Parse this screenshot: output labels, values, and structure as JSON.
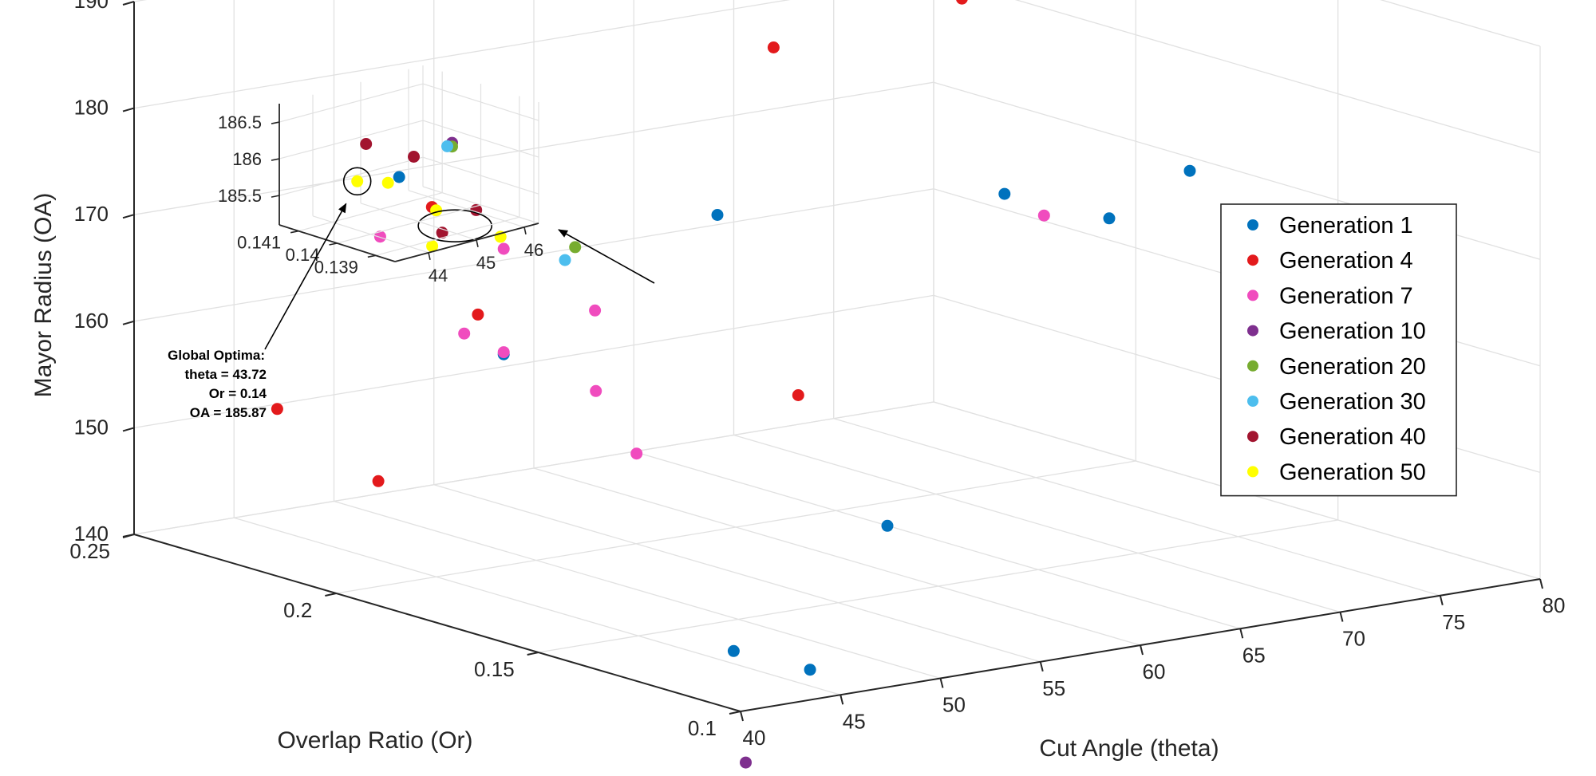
{
  "chart_data": {
    "type": "scatter3d",
    "xlabel": "Cut Angle (theta)",
    "ylabel": "Overlap Ratio (Or)",
    "zlabel": "Mayor Radius (OA)",
    "xlim": [
      40,
      80
    ],
    "ylim": [
      0.1,
      0.25
    ],
    "zlim": [
      140,
      190
    ],
    "xticks": [
      "40",
      "45",
      "50",
      "55",
      "60",
      "65",
      "70",
      "75",
      "80"
    ],
    "yticks": [
      "0.1",
      "0.15",
      "0.2",
      "0.25"
    ],
    "zticks": [
      "140",
      "150",
      "160",
      "170",
      "180",
      "190"
    ],
    "grid": true,
    "legend_position": "right",
    "series": [
      {
        "name": "Generation 1",
        "color": "#0072BD",
        "points": [
          [
            47.8,
            0.223,
            174.1
          ],
          [
            43.7,
            0.12,
            142.3
          ],
          [
            45.5,
            0.11,
            141.1
          ],
          [
            52.4,
            0.125,
            150.8
          ],
          [
            53.0,
            0.17,
            174.8
          ],
          [
            63.5,
            0.125,
            176.2
          ],
          [
            73.6,
            0.155,
            174.2
          ],
          [
            79.5,
            0.23,
            161.9
          ],
          [
            75.5,
            0.145,
            158.1
          ],
          [
            50.4,
            0.21,
            158.1
          ]
        ]
      },
      {
        "name": "Generation 4",
        "color": "#E31A1C",
        "points": [
          [
            41.5,
            0.222,
            154.4
          ],
          [
            41.5,
            0.197,
            150.4
          ],
          [
            48.1,
            0.205,
            163.1
          ],
          [
            53.0,
            0.15,
            160.1
          ],
          [
            63.9,
            0.21,
            182.7
          ],
          [
            55.7,
            0.23,
            211.3
          ],
          [
            45.8,
            0.205,
            173.9
          ],
          [
            71.3,
            0.2,
            186.1
          ],
          [
            76.5,
            0.23,
            188.1
          ]
        ]
      },
      {
        "name": "Generation 7",
        "color": "#F04CBE",
        "points": [
          [
            42.2,
            0.2,
            172.8
          ],
          [
            44.9,
            0.16,
            161.9
          ],
          [
            43.9,
            0.145,
            158.0
          ],
          [
            46.4,
            0.2,
            162.4
          ],
          [
            48.9,
            0.18,
            166.0
          ],
          [
            50.4,
            0.21,
            168.0
          ],
          [
            50.4,
            0.21,
            158.3
          ],
          [
            65.7,
            0.152,
            172.8
          ]
        ]
      },
      {
        "name": "Generation 10",
        "color": "#7E2F8E",
        "points": [
          [
            43.9,
            0.118,
            132.0
          ]
        ]
      },
      {
        "name": "Generation 20",
        "color": "#77AC30",
        "points": [
          [
            47.5,
            0.178,
            172.6
          ]
        ]
      },
      {
        "name": "Generation 30",
        "color": "#4DBEEE",
        "points": [
          [
            47.4,
            0.18,
            171.2
          ]
        ]
      },
      {
        "name": "Generation 40",
        "color": "#A2142F",
        "points": [
          [
            47.0,
            0.2,
            173.8
          ],
          [
            45.3,
            0.2,
            172.2
          ]
        ]
      },
      {
        "name": "Generation 50",
        "color": "#FFFF00",
        "points": [
          [
            45.0,
            0.2,
            174.4
          ],
          [
            44.8,
            0.2,
            171.1
          ],
          [
            46.6,
            0.192,
            172.3
          ]
        ]
      }
    ],
    "inset": {
      "xticks": [
        "44",
        "45",
        "46"
      ],
      "yticks": [
        "0.139",
        "0.14",
        "0.141"
      ],
      "zticks": [
        "185.5",
        "186",
        "186.5"
      ],
      "points": [
        {
          "series": "Generation 40",
          "color": "#A2142F",
          "theta": 43.5,
          "or": 0.1395,
          "oa": 186.5
        },
        {
          "series": "Generation 50",
          "color": "#FFFF00",
          "theta": 43.72,
          "or": 0.14,
          "oa": 185.87,
          "circled": true
        },
        {
          "series": "Generation 50",
          "color": "#FFFF00",
          "theta": 44.2,
          "or": 0.1398,
          "oa": 185.8
        },
        {
          "series": "Generation 40",
          "color": "#A2142F",
          "theta": 44.9,
          "or": 0.14,
          "oa": 186.0
        },
        {
          "series": "Generation 10",
          "color": "#7E2F8E",
          "theta": 45.7,
          "or": 0.14,
          "oa": 186.05
        },
        {
          "series": "Generation 20",
          "color": "#77AC30",
          "theta": 45.7,
          "or": 0.14,
          "oa": 186.0
        },
        {
          "series": "Generation 30",
          "color": "#4DBEEE",
          "theta": 45.6,
          "or": 0.14,
          "oa": 186.02
        }
      ]
    },
    "annotation": {
      "lines": [
        "Global Optima:",
        "theta = 43.72",
        "Or = 0.14",
        "OA = 185.87"
      ]
    }
  }
}
